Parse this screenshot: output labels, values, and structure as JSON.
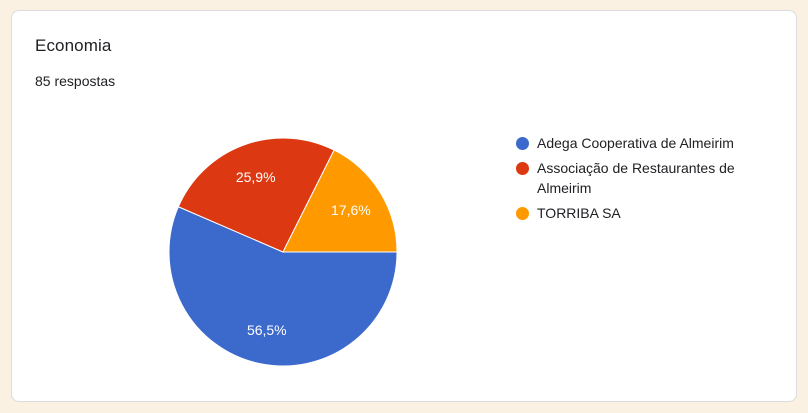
{
  "card": {
    "title": "Economia",
    "responses": "85 respostas"
  },
  "chart_data": {
    "type": "pie",
    "title": "Economia",
    "subtitle": "85 respostas",
    "total_responses": 85,
    "start_angle_deg": 0,
    "direction": "clockwise",
    "legend_position": "right",
    "slices": [
      {
        "label": "Adega Cooperativa de Almeirim",
        "value": 56.5,
        "display": "56,5%",
        "color": "#3b69cc"
      },
      {
        "label": "Associação de Restaurantes de Almeirim",
        "value": 25.9,
        "display": "25,9%",
        "color": "#dc3912"
      },
      {
        "label": "TORRIBA SA",
        "value": 17.6,
        "display": "17,6%",
        "color": "#ff9900"
      }
    ]
  },
  "colors": {
    "page_background": "#faf1e2",
    "card_background": "#ffffff",
    "card_border": "#dadce0",
    "text": "#202124",
    "slice_label_text": "#ffffff",
    "slice_stroke": "#ffffff"
  }
}
